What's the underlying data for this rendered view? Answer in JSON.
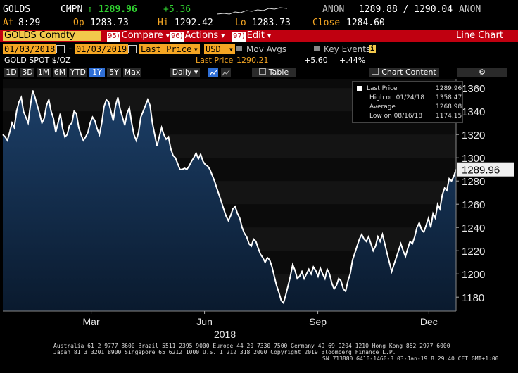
{
  "quote": {
    "ticker": "GOLDS",
    "cmpn": "CMPN",
    "arrow": "↑",
    "last": "1289.96",
    "change": "+5.36",
    "source": "ANON",
    "bid_ask": "1289.88 / 1290.04",
    "source2": "ANON",
    "at_label": "At",
    "at_time": "8:29",
    "op_label": "Op",
    "open": "1283.73",
    "hi_label": "Hi",
    "high": "1292.42",
    "lo_label": "Lo",
    "low": "1283.73",
    "close_label": "Close",
    "close": "1284.60"
  },
  "toolbar": {
    "security": "GOLDS Comdty",
    "compare_num": "95)",
    "compare": "Compare",
    "actions_num": "96)",
    "actions": "Actions",
    "edit_num": "97)",
    "edit": "Edit",
    "dropdown_arrow": "▾",
    "line_chart": "Line Chart"
  },
  "settings": {
    "start_date": "01/03/2018",
    "end_date": "01/03/2019",
    "date_sep": "-",
    "field": "Last Price",
    "currency": "USD",
    "mov_avgs": "Mov Avgs",
    "key_events": "Key Events",
    "info_icon": "i"
  },
  "info": {
    "name": "GOLD SPOT $/OZ",
    "last_price_label": "Last Price",
    "last_price": "1290.21",
    "chg": "+5.60",
    "pct": "+.44%"
  },
  "periods": [
    "1D",
    "3D",
    "1M",
    "6M",
    "YTD",
    "1Y",
    "5Y",
    "Max"
  ],
  "selected_period": "1Y",
  "frequency": "Daily",
  "table_button": "Table",
  "chart_content": "Chart Content",
  "icons": {
    "settings": "gear-icon",
    "line_style": "line-style-icon",
    "calendar": "calendar-icon",
    "table": "table-icon",
    "chart_content": "chart-content-icon"
  },
  "colors": {
    "accent_red": "#c00010",
    "amber": "#f5a623",
    "price_line": "#ffffff",
    "fill_top": "#1c3f68",
    "fill_bottom": "#0a1a2e"
  },
  "legend": {
    "last_price": "Last Price",
    "last_value": "1289.96",
    "high_label": "High on 01/24/18",
    "high_value": "1358.47",
    "avg_label": "Average",
    "avg_value": "1268.98",
    "low_label": "Low on 08/16/18",
    "low_value": "1174.15"
  },
  "chart_data": {
    "type": "area",
    "x_tick_labels": [
      "Mar",
      "Jun",
      "Sep",
      "Dec"
    ],
    "year_label": "2018",
    "y_ticks": [
      1180,
      1200,
      1220,
      1240,
      1260,
      1280,
      1300,
      1320,
      1340,
      1360
    ],
    "ylim": [
      1168,
      1368
    ],
    "last_value_label": "1289.96",
    "series": [
      {
        "values": [
          1320,
          1318,
          1315,
          1322,
          1330,
          1326,
          1340,
          1348,
          1352,
          1340,
          1335,
          1330,
          1345,
          1358,
          1352,
          1345,
          1338,
          1330,
          1334,
          1345,
          1350,
          1340,
          1334,
          1322,
          1330,
          1338,
          1325,
          1318,
          1320,
          1328,
          1330,
          1340,
          1338,
          1326,
          1320,
          1315,
          1318,
          1322,
          1330,
          1335,
          1332,
          1325,
          1320,
          1330,
          1344,
          1350,
          1348,
          1340,
          1332,
          1345,
          1352,
          1342,
          1335,
          1328,
          1338,
          1343,
          1330,
          1320,
          1315,
          1322,
          1335,
          1340,
          1345,
          1350,
          1345,
          1330,
          1320,
          1310,
          1318,
          1326,
          1320,
          1316,
          1318,
          1308,
          1302,
          1300,
          1295,
          1290,
          1290,
          1291,
          1290,
          1293,
          1297,
          1300,
          1304,
          1299,
          1303,
          1297,
          1294,
          1293,
          1290,
          1285,
          1280,
          1274,
          1268,
          1262,
          1256,
          1250,
          1246,
          1250,
          1256,
          1258,
          1252,
          1248,
          1240,
          1235,
          1232,
          1226,
          1224,
          1230,
          1228,
          1222,
          1217,
          1214,
          1210,
          1214,
          1212,
          1206,
          1198,
          1190,
          1184,
          1177,
          1175,
          1182,
          1190,
          1198,
          1208,
          1203,
          1196,
          1198,
          1202,
          1196,
          1200,
          1204,
          1200,
          1206,
          1203,
          1198,
          1205,
          1200,
          1196,
          1204,
          1200,
          1192,
          1187,
          1190,
          1196,
          1194,
          1187,
          1185,
          1194,
          1200,
          1212,
          1218,
          1224,
          1230,
          1234,
          1230,
          1228,
          1232,
          1226,
          1220,
          1224,
          1232,
          1228,
          1234,
          1226,
          1218,
          1210,
          1202,
          1208,
          1214,
          1220,
          1226,
          1220,
          1215,
          1222,
          1228,
          1226,
          1232,
          1240,
          1244,
          1238,
          1236,
          1242,
          1248,
          1240,
          1252,
          1248,
          1260,
          1256,
          1268,
          1274,
          1272,
          1282,
          1280,
          1284,
          1290
        ]
      }
    ]
  },
  "footer": {
    "line1": "Australia 61 2 9777 8600 Brazil 5511 2395 9000 Europe 44 20 7330 7500 Germany 49 69 9204 1210 Hong Kong 852 2977 6000",
    "line2": "Japan 81 3 3201 8900        Singapore 65 6212 1000       U.S. 1 212 318 2000          Copyright 2019 Bloomberg Finance L.P.",
    "line3": "SN 713880 G410-1460-3 03-Jan-19  8:29:40 CET  GMT+1:00"
  }
}
